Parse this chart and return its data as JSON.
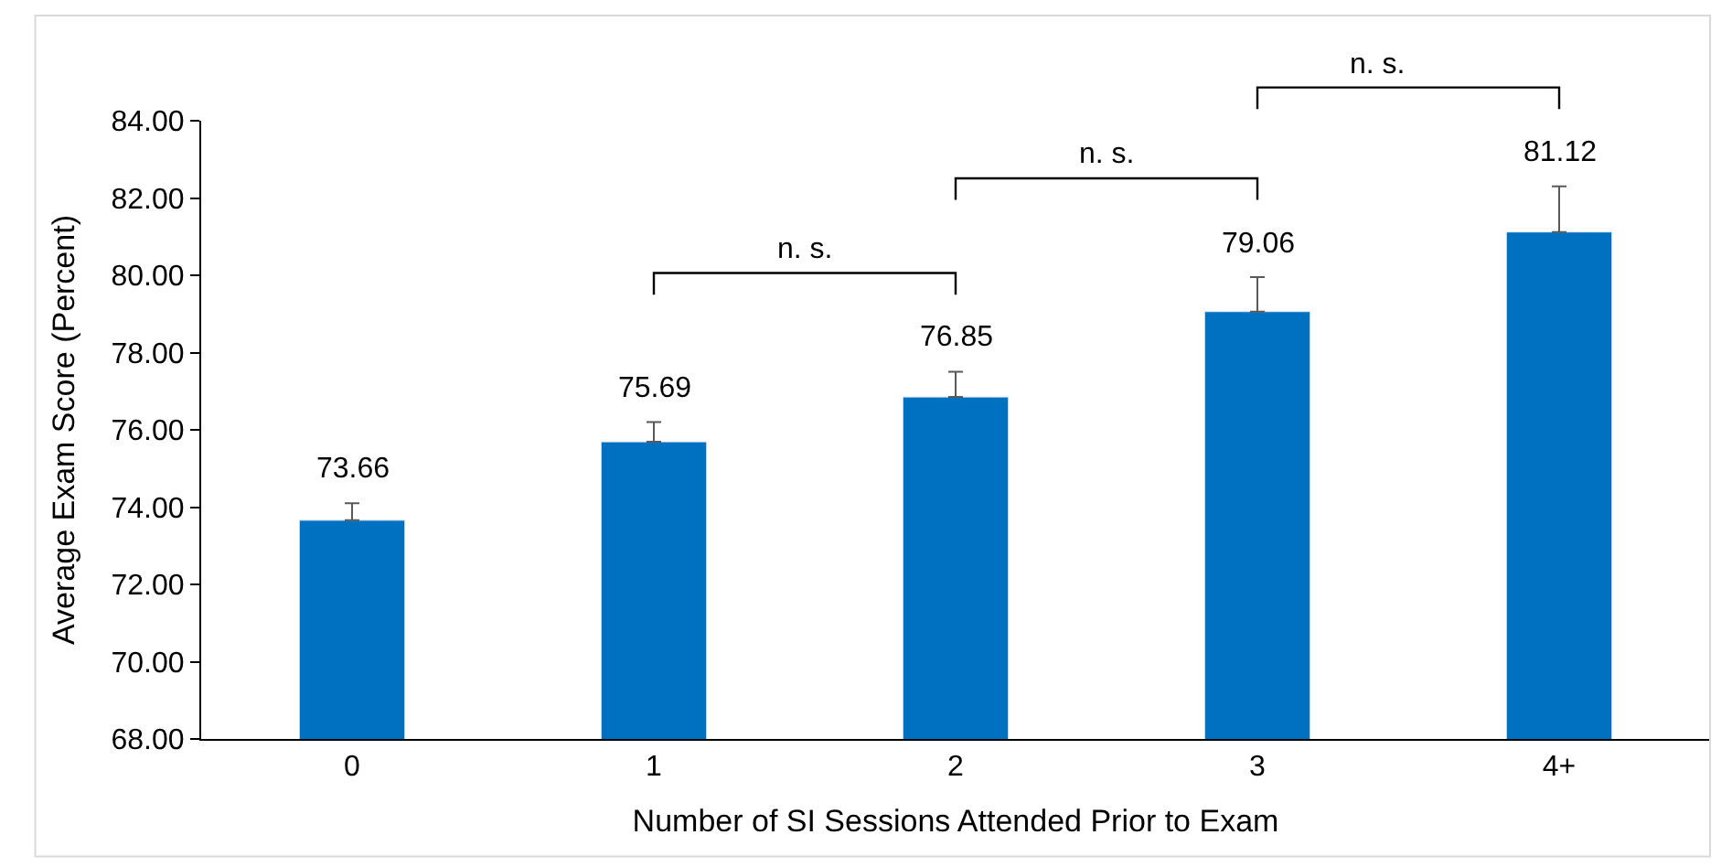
{
  "chart_data": {
    "type": "bar",
    "xlabel": "Number of SI Sessions Attended Prior to Exam",
    "ylabel": "Average Exam Score (Percent)",
    "categories": [
      "0",
      "1",
      "2",
      "3",
      "4+"
    ],
    "series": [
      {
        "color": "#0070c0",
        "values": [
          73.66,
          75.69,
          76.85,
          79.06,
          81.12
        ],
        "errors": [
          [
            73.66,
            74.1
          ],
          [
            75.69,
            76.2
          ],
          [
            76.85,
            77.5
          ],
          [
            79.06,
            79.95
          ],
          [
            81.12,
            82.3
          ]
        ]
      }
    ],
    "data_labels": true,
    "ylim": [
      68,
      84
    ],
    "yticks": [
      {
        "value": 68,
        "label": "68.00"
      },
      {
        "value": 70,
        "label": "70.00"
      },
      {
        "value": 72,
        "label": "72.00"
      },
      {
        "value": 74,
        "label": "74.00"
      },
      {
        "value": 76,
        "label": "76.00"
      },
      {
        "value": 78,
        "label": "78.00"
      },
      {
        "value": 80,
        "label": "80.00"
      },
      {
        "value": 82,
        "label": "82.00"
      },
      {
        "value": 84,
        "label": "84.00"
      }
    ],
    "annotations": [
      "n. s.",
      "n. s.",
      "n. s."
    ]
  }
}
